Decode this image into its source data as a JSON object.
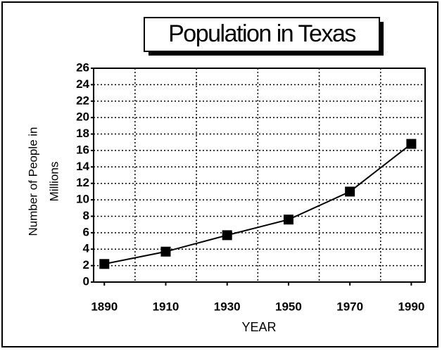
{
  "chart_data": {
    "type": "line",
    "title": "Population in Texas",
    "xlabel": "YEAR",
    "ylabel": [
      "Number of People in",
      "Millions"
    ],
    "x": [
      1890,
      1910,
      1930,
      1950,
      1970,
      1990
    ],
    "series": [
      {
        "name": "Population",
        "color": "#000000",
        "values": [
          2.2,
          3.7,
          5.7,
          7.6,
          11.0,
          16.8
        ]
      }
    ],
    "xlim": [
      1886.5,
      1994.5
    ],
    "xticks": [
      1890,
      1910,
      1930,
      1950,
      1970,
      1990
    ],
    "x_minor_ticks": [
      1900,
      1920,
      1940,
      1960,
      1980
    ],
    "ylim": [
      0,
      26
    ],
    "yticks": [
      0,
      2,
      4,
      6,
      8,
      10,
      12,
      14,
      16,
      18,
      20,
      22,
      24,
      26
    ],
    "grid": true
  }
}
